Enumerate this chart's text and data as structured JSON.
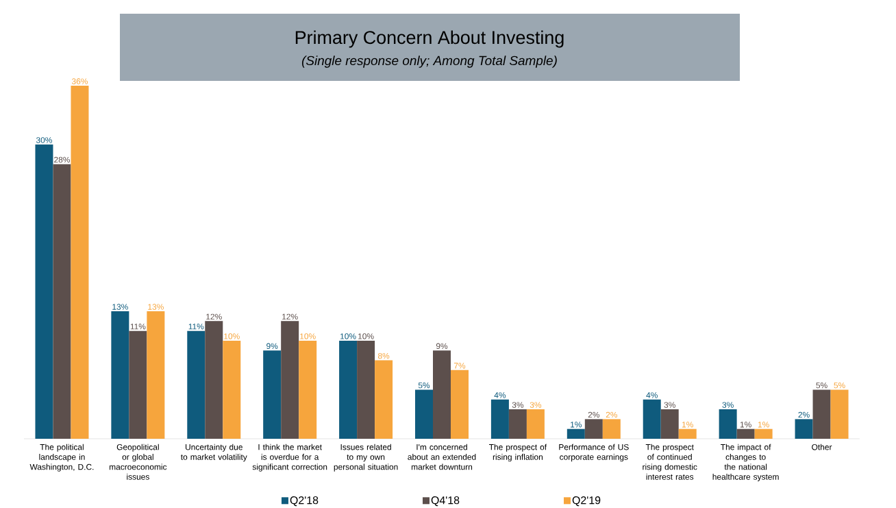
{
  "chart_data": {
    "type": "bar",
    "title": "Primary Concern About Investing",
    "subtitle": "(Single response only; Among Total Sample)",
    "categories": [
      "The political landscape in Washington, D.C.",
      "Geopolitical or global macroeconomic issues",
      "Uncertainty due to market volatility",
      "I think the market is overdue for a significant correction",
      "Issues related to my own personal situation",
      "I'm concerned about an extended market downturn",
      "The prospect of rising inflation",
      "Performance of US corporate earnings",
      "The prospect of continued rising domestic interest rates",
      "The impact of changes to the national healthcare system",
      "Other"
    ],
    "series": [
      {
        "name": "Q2'18",
        "color": "#0f5b7d",
        "values": [
          30,
          13,
          11,
          9,
          10,
          5,
          4,
          1,
          4,
          3,
          2
        ],
        "value_labels": [
          "30%",
          "13%",
          "11%",
          "9%",
          "10%",
          "5%",
          "4%",
          "1%",
          "4%",
          "3%",
          "2%"
        ]
      },
      {
        "name": "Q4'18",
        "color": "#5c4f4c",
        "values": [
          28,
          11,
          12,
          12,
          10,
          9,
          3,
          2,
          3,
          1,
          5
        ],
        "value_labels": [
          "28%",
          "11%",
          "12%",
          "12%",
          "10%",
          "9%",
          "3%",
          "2%",
          "3%",
          "1%",
          "5%"
        ]
      },
      {
        "name": "Q2'19",
        "color": "#f6a53d",
        "values": [
          36,
          13,
          10,
          10,
          8,
          7,
          3,
          2,
          1,
          1,
          5
        ],
        "value_labels": [
          "36%",
          "13%",
          "10%",
          "10%",
          "8%",
          "7%",
          "3%",
          "2%",
          "1%",
          "1%",
          "5%"
        ]
      }
    ],
    "legend": "bottom"
  }
}
